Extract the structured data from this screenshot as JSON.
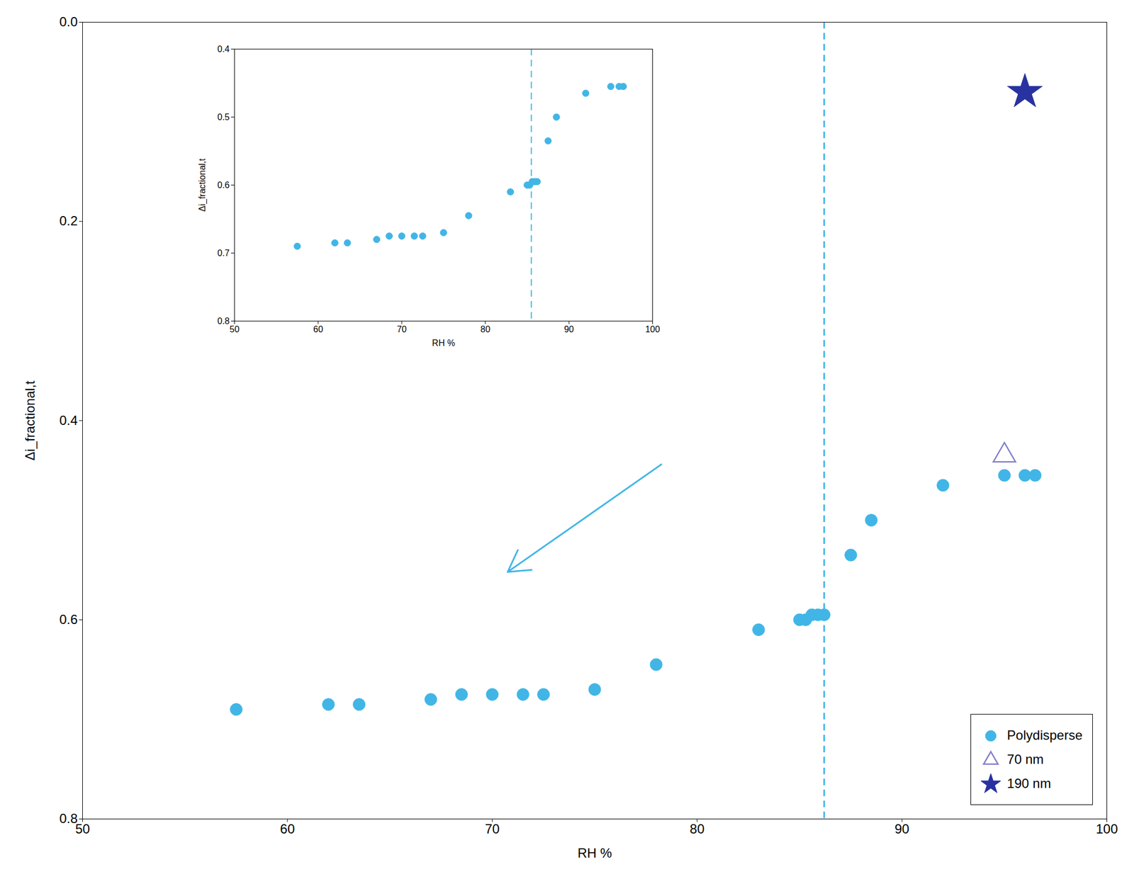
{
  "chart_data": [
    {
      "type": "scatter",
      "xlabel": "RH %",
      "ylabel": "Δi_fractional,t",
      "xlim": [
        50,
        100
      ],
      "ylim": [
        0.8,
        0.0
      ],
      "xticks": [
        50,
        60,
        70,
        80,
        90,
        100
      ],
      "yticks": [
        {
          "value": 0.0,
          "label": "0.0"
        },
        0.2,
        0.4,
        0.6,
        0.8
      ],
      "grid": false,
      "legend": "lower right",
      "series": [
        {
          "name": "Polydisperse",
          "color": "#41B6E6",
          "marker": "circle",
          "x": [
            57.5,
            62,
            63.5,
            67,
            68.5,
            70,
            71.5,
            72.5,
            75,
            78,
            83,
            85.0,
            85.3,
            85.6,
            85.9,
            86.2,
            87.5,
            88.5,
            92,
            95.0,
            96.0,
            96.5
          ],
          "values": [
            0.69,
            0.685,
            0.685,
            0.68,
            0.675,
            0.675,
            0.675,
            0.675,
            0.67,
            0.645,
            0.61,
            0.6,
            0.6,
            0.595,
            0.595,
            0.595,
            0.535,
            0.5,
            0.465,
            0.455,
            0.455,
            0.455
          ]
        },
        {
          "name": "70 nm",
          "color": "#8080C8",
          "marker": "triangle-open",
          "x": [
            95.0
          ],
          "values": [
            0.435
          ]
        },
        {
          "name": "190 nm",
          "color": "#2832A0",
          "marker": "star",
          "x": [
            96.0
          ],
          "values": [
            0.07
          ]
        }
      ],
      "reference_lines": [
        {
          "x": 86.2,
          "color": "#41B6E6",
          "line_style": "dashed"
        }
      ]
    },
    {
      "type": "scatter",
      "xlabel": "RH %",
      "ylabel": "Δi_fractional,t",
      "xlim": [
        50,
        100
      ],
      "ylim": [
        0.8,
        0.4
      ],
      "xticks": [
        50,
        60,
        70,
        80,
        90,
        100
      ],
      "yticks": [
        0.8,
        0.7,
        0.6,
        0.5,
        0.4
      ],
      "grid": false,
      "series": [
        {
          "color": "#41B6E6",
          "marker": "circle",
          "x": [
            57.5,
            62,
            63.5,
            67,
            68.5,
            70,
            71.5,
            72.5,
            75,
            78,
            83,
            85.0,
            85.3,
            85.6,
            85.9,
            86.2,
            87.5,
            88.5,
            92,
            95.0,
            96.0,
            96.5
          ],
          "values": [
            0.69,
            0.685,
            0.685,
            0.68,
            0.675,
            0.675,
            0.675,
            0.675,
            0.67,
            0.645,
            0.61,
            0.6,
            0.6,
            0.595,
            0.595,
            0.595,
            0.535,
            0.5,
            0.465,
            0.455,
            0.455,
            0.455
          ]
        }
      ],
      "reference_lines": [
        {
          "x": 85.5,
          "color": "#41B6E6",
          "line_style": "dashed"
        }
      ]
    }
  ]
}
